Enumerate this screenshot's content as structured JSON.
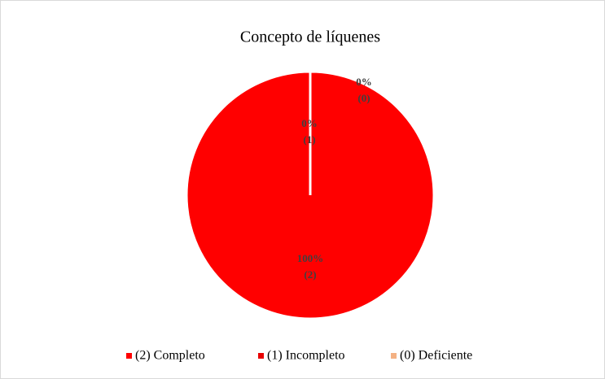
{
  "chart_data": {
    "type": "pie",
    "title": "Concepto de líquenes",
    "categories": [
      "(2) Completo",
      "(1) Incompleto",
      "(0) Deficiente"
    ],
    "values": [
      100,
      0,
      0
    ],
    "value_labels": [
      "100%",
      "0%",
      "0%"
    ],
    "label_codes": [
      "(2)",
      "(1)",
      "(0)"
    ],
    "colors": [
      "#ff0000",
      "#e80000",
      "#f4b183"
    ],
    "legend": "bottom"
  }
}
